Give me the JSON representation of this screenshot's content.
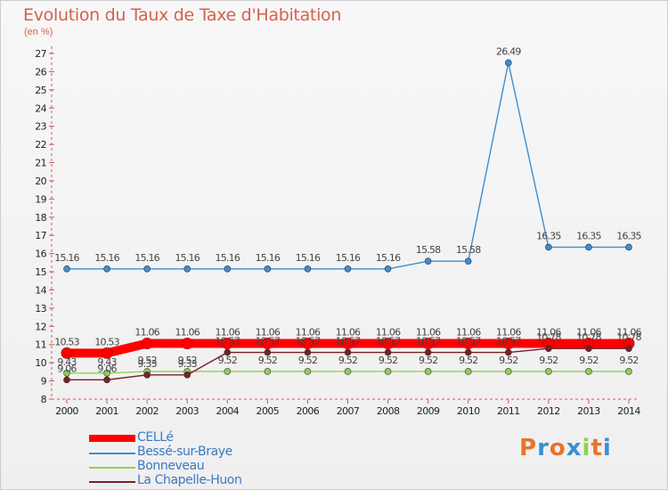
{
  "title": "Evolution du Taux de Taxe d'Habitation",
  "subtitle": "(en %)",
  "logo": "Proxiti",
  "chart_data": {
    "type": "line",
    "title": "Evolution du Taux de Taxe d'Habitation",
    "subtitle": "(en %)",
    "categories": [
      "2000",
      "2001",
      "2002",
      "2003",
      "2004",
      "2005",
      "2006",
      "2007",
      "2008",
      "2009",
      "2010",
      "2011",
      "2012",
      "2013",
      "2014"
    ],
    "ylim": [
      8,
      27
    ],
    "yticks": [
      8,
      9,
      10,
      11,
      12,
      13,
      14,
      15,
      16,
      17,
      18,
      19,
      20,
      21,
      22,
      23,
      24,
      25,
      26,
      27
    ],
    "grid": false,
    "legend_position": "bottom-left",
    "series": [
      {
        "name": "CELLé",
        "color": "#ff0000",
        "values": [
          10.53,
          10.53,
          11.06,
          11.06,
          11.06,
          11.06,
          11.06,
          11.06,
          11.06,
          11.06,
          11.06,
          11.06,
          11.06,
          11.06,
          11.06
        ],
        "labels": [
          "10.53",
          "10.53",
          "11.06",
          "11.06",
          "11.06",
          "11.06",
          "11.06",
          "11.06",
          "11.06",
          "11.06",
          "11.06",
          "11.06",
          "11.06",
          "11.06",
          "11.06"
        ]
      },
      {
        "name": "Bessé-sur-Braye",
        "color": "#3d8ed4",
        "values": [
          15.16,
          15.16,
          15.16,
          15.16,
          15.16,
          15.16,
          15.16,
          15.16,
          15.16,
          15.58,
          15.58,
          26.49,
          16.35,
          16.35,
          16.35
        ],
        "labels": [
          "15.16",
          "15.16",
          "15.16",
          "15.16",
          "15.16",
          "15.16",
          "15.16",
          "15.16",
          "15.16",
          "15.58",
          "15.58",
          "26.49",
          "16.35",
          "16.35",
          "16.35"
        ]
      },
      {
        "name": "Bonneveau",
        "color": "#8fd14f",
        "values": [
          9.43,
          9.43,
          9.52,
          9.52,
          9.52,
          9.52,
          9.52,
          9.52,
          9.52,
          9.52,
          9.52,
          9.52,
          9.52,
          9.52,
          9.52
        ],
        "labels": [
          "9.43",
          "9.43",
          "9.52",
          "9.52",
          "9.52",
          "9.52",
          "9.52",
          "9.52",
          "9.52",
          "9.52",
          "9.52",
          "9.52",
          "9.52",
          "9.52",
          "9.52"
        ]
      },
      {
        "name": "La Chapelle-Huon",
        "color": "#7a1f2a",
        "values": [
          9.06,
          9.06,
          9.33,
          9.33,
          10.57,
          10.57,
          10.57,
          10.57,
          10.57,
          10.57,
          10.57,
          10.57,
          10.78,
          10.78,
          10.78
        ],
        "labels": [
          "9.06",
          "9.06",
          "9.33",
          "9.33",
          "10.57",
          "10.57",
          "10.57",
          "10.57",
          "10.57",
          "10.57",
          "10.57",
          "10.57",
          "10.78",
          "10.78",
          "10.78"
        ]
      }
    ]
  }
}
